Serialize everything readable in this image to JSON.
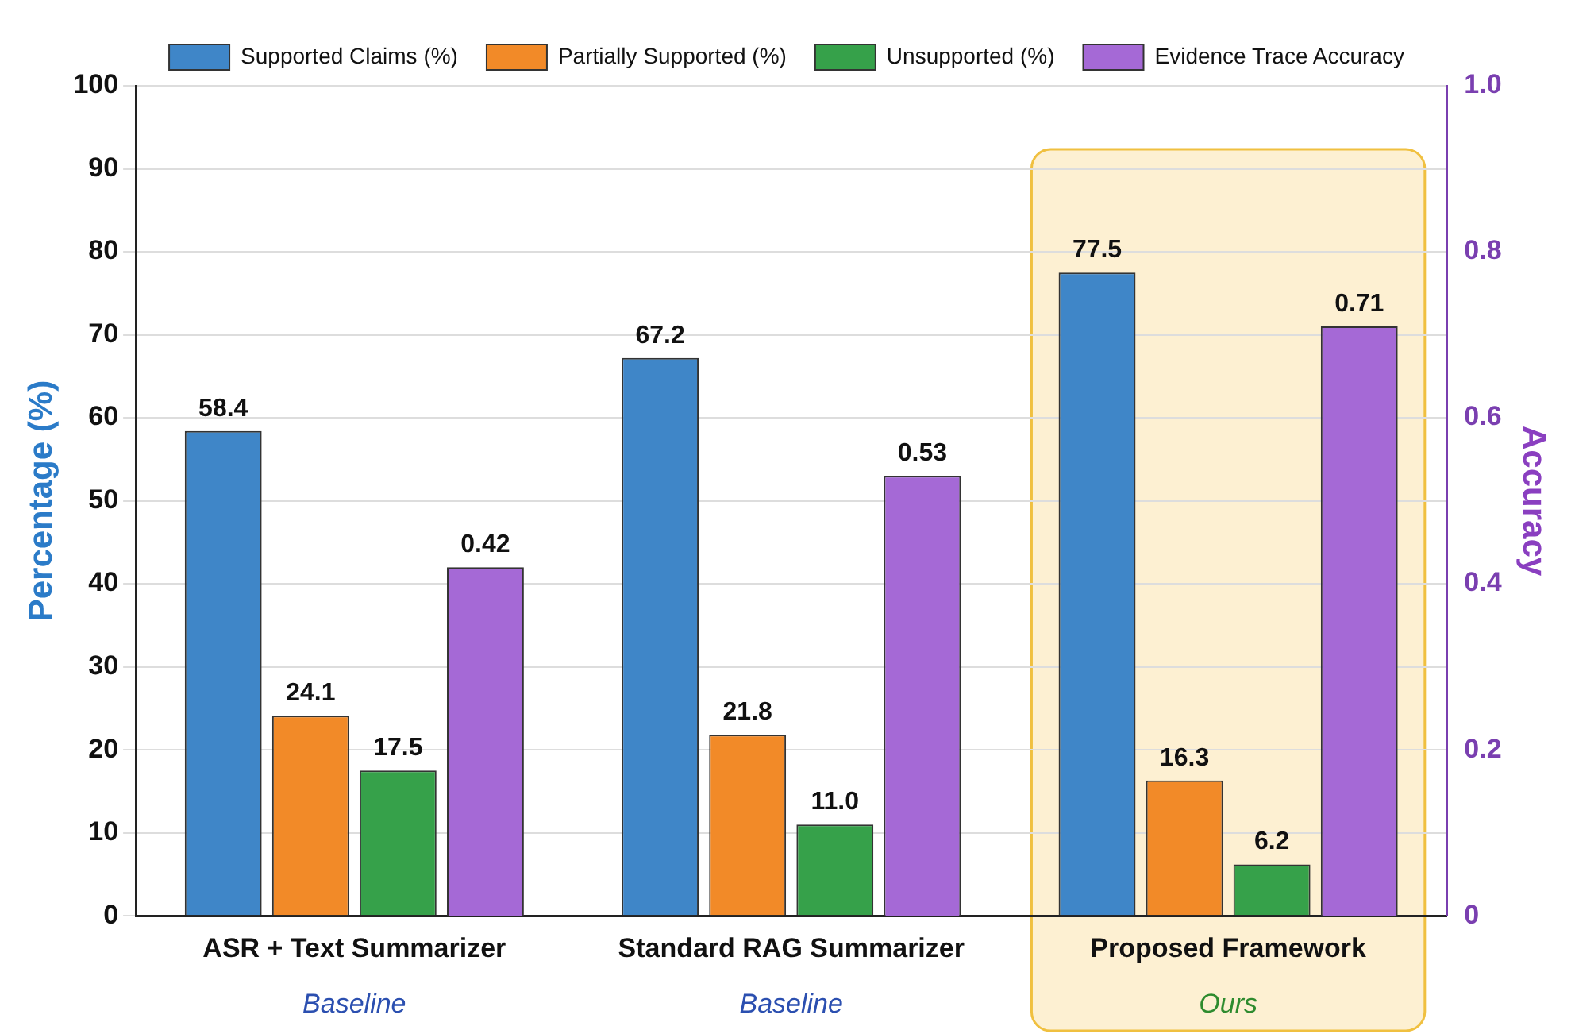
{
  "chart_data": {
    "type": "bar",
    "categories": [
      "ASR + Text Summarizer",
      "Standard RAG Summarizer",
      "Proposed Framework"
    ],
    "ylabel": "Percentage (%)",
    "y2label": "Accuracy",
    "ylim": [
      0,
      100
    ],
    "yticks": [
      0,
      10,
      20,
      30,
      40,
      50,
      60,
      70,
      80,
      90,
      100
    ],
    "y2lim": [
      0,
      1
    ],
    "y2ticks": [
      0,
      0.2,
      0.4,
      0.6,
      0.8,
      {
        "value": 1,
        "label": "1.0"
      }
    ],
    "grid": "y",
    "legend": "top",
    "series": [
      {
        "name": "Supported Claims (%)",
        "color": "#3f86c8",
        "values": [
          58.4,
          67.2,
          77.5
        ],
        "value_labels": [
          "58.4",
          "67.2",
          "77.5"
        ]
      },
      {
        "name": "Partially Supported (%)",
        "color": "#f28a28",
        "values": [
          24.1,
          21.8,
          16.3
        ],
        "value_labels": [
          "24.1",
          "21.8",
          "16.3"
        ]
      },
      {
        "name": "Unsupported (%)",
        "color": "#36a14a",
        "values": [
          17.5,
          11.0,
          6.2
        ],
        "value_labels": [
          "17.5",
          "11.0",
          "6.2"
        ]
      },
      {
        "name": "Evidence Trace Accuracy",
        "color": "#a569d6",
        "axis": "y2",
        "values": [
          0.42,
          0.53,
          0.71
        ],
        "value_labels": [
          "0.42",
          "0.53",
          "0.71"
        ]
      }
    ],
    "bands": [
      {
        "axis": "x",
        "from": "Proposed Framework",
        "to": "Proposed Framework",
        "color": "#fdf0d2"
      }
    ],
    "annotations": [
      "Baseline",
      "Baseline",
      "Ours"
    ]
  }
}
